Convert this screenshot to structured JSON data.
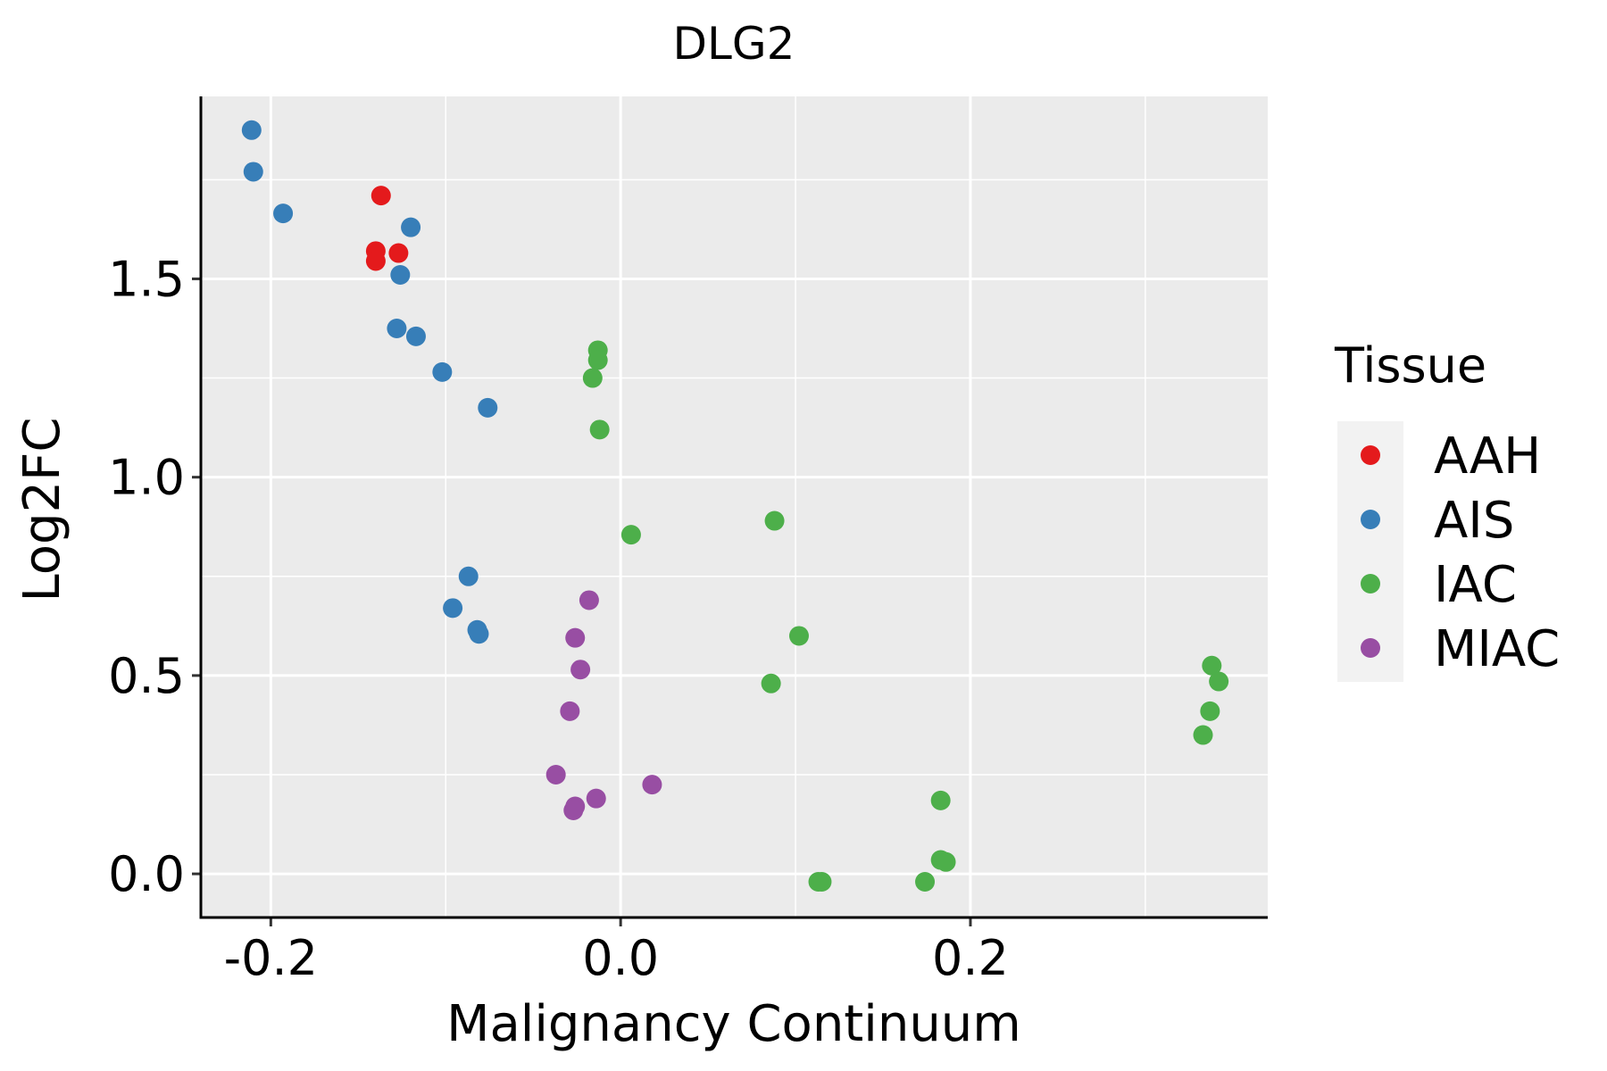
{
  "chart_data": {
    "type": "scatter",
    "title": "DLG2",
    "xlabel": "Malignancy Continuum",
    "ylabel": "Log2FC",
    "xlim": [
      -0.24,
      0.37
    ],
    "ylim": [
      -0.11,
      1.96
    ],
    "x_ticks": [
      -0.2,
      0.0,
      0.2
    ],
    "x_tick_labels": [
      "-0.2",
      "0.0",
      "0.2"
    ],
    "y_ticks": [
      0.0,
      0.5,
      1.0,
      1.5
    ],
    "y_tick_labels": [
      "0.0",
      "0.5",
      "1.0",
      "1.5"
    ],
    "grid": true,
    "legend": {
      "title": "Tissue",
      "position": "right"
    },
    "series": [
      {
        "name": "AAH",
        "color": "#E41A1C",
        "points": [
          [
            -0.137,
            1.71
          ],
          [
            -0.14,
            1.57
          ],
          [
            -0.127,
            1.565
          ],
          [
            -0.14,
            1.545
          ]
        ]
      },
      {
        "name": "AIS",
        "color": "#377EB8",
        "points": [
          [
            -0.211,
            1.875
          ],
          [
            -0.21,
            1.77
          ],
          [
            -0.193,
            1.665
          ],
          [
            -0.12,
            1.63
          ],
          [
            -0.126,
            1.51
          ],
          [
            -0.128,
            1.375
          ],
          [
            -0.117,
            1.355
          ],
          [
            -0.102,
            1.265
          ],
          [
            -0.076,
            1.175
          ],
          [
            -0.087,
            0.75
          ],
          [
            -0.096,
            0.67
          ],
          [
            -0.082,
            0.615
          ],
          [
            -0.081,
            0.605
          ]
        ]
      },
      {
        "name": "IAC",
        "color": "#4DAF4A",
        "points": [
          [
            -0.013,
            1.32
          ],
          [
            -0.013,
            1.295
          ],
          [
            -0.016,
            1.25
          ],
          [
            -0.012,
            1.12
          ],
          [
            0.006,
            0.855
          ],
          [
            0.088,
            0.89
          ],
          [
            0.102,
            0.6
          ],
          [
            0.086,
            0.48
          ],
          [
            0.338,
            0.525
          ],
          [
            0.342,
            0.485
          ],
          [
            0.337,
            0.41
          ],
          [
            0.333,
            0.35
          ],
          [
            0.183,
            0.185
          ],
          [
            0.183,
            0.035
          ],
          [
            0.186,
            0.03
          ],
          [
            0.113,
            -0.02
          ],
          [
            0.115,
            -0.02
          ],
          [
            0.174,
            -0.02
          ]
        ]
      },
      {
        "name": "MIAC",
        "color": "#984EA3",
        "points": [
          [
            -0.018,
            0.69
          ],
          [
            -0.026,
            0.595
          ],
          [
            -0.023,
            0.515
          ],
          [
            -0.029,
            0.41
          ],
          [
            -0.037,
            0.25
          ],
          [
            0.018,
            0.225
          ],
          [
            -0.014,
            0.19
          ],
          [
            -0.026,
            0.17
          ],
          [
            -0.027,
            0.16
          ]
        ]
      }
    ]
  }
}
